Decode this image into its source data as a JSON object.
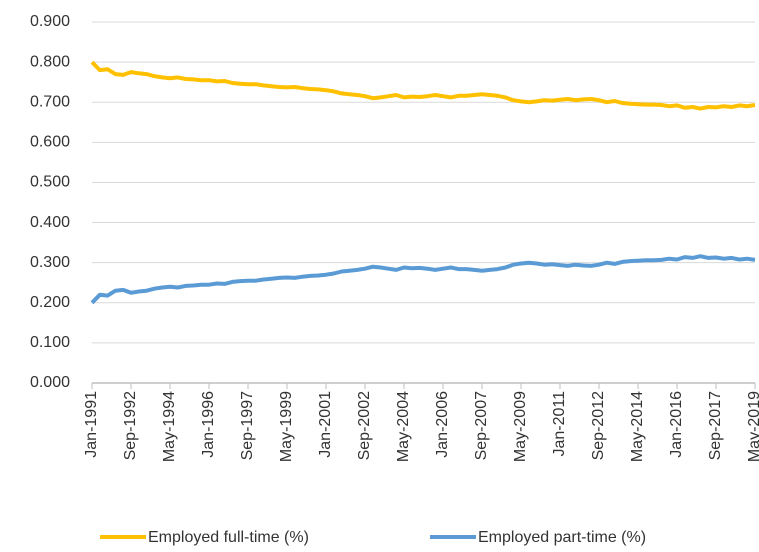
{
  "chart_data": {
    "type": "line",
    "categories": [
      "Jan-1991",
      null,
      null,
      null,
      null,
      "Sep-1992",
      null,
      null,
      null,
      null,
      "May-1994",
      null,
      null,
      null,
      null,
      "Jan-1996",
      null,
      null,
      null,
      null,
      "Sep-1997",
      null,
      null,
      null,
      null,
      "May-1999",
      null,
      null,
      null,
      null,
      "Jan-2001",
      null,
      null,
      null,
      null,
      "Sep-2002",
      null,
      null,
      null,
      null,
      "May-2004",
      null,
      null,
      null,
      null,
      "Jan-2006",
      null,
      null,
      null,
      null,
      "Sep-2007",
      null,
      null,
      null,
      null,
      "May-2009",
      null,
      null,
      null,
      null,
      "Jan-2011",
      null,
      null,
      null,
      null,
      "Sep-2012",
      null,
      null,
      null,
      null,
      "May-2014",
      null,
      null,
      null,
      null,
      "Jan-2016",
      null,
      null,
      null,
      null,
      "Sep-2017",
      null,
      null,
      null,
      null,
      "May-2019"
    ],
    "series": [
      {
        "name": "Employed full-time (%)",
        "color": "#ffc000",
        "values": [
          0.8,
          0.78,
          0.782,
          0.77,
          0.768,
          0.775,
          0.772,
          0.77,
          0.765,
          0.762,
          0.76,
          0.762,
          0.758,
          0.757,
          0.755,
          0.755,
          0.752,
          0.753,
          0.748,
          0.746,
          0.745,
          0.745,
          0.742,
          0.74,
          0.738,
          0.737,
          0.738,
          0.735,
          0.733,
          0.732,
          0.73,
          0.727,
          0.722,
          0.72,
          0.718,
          0.715,
          0.71,
          0.712,
          0.715,
          0.718,
          0.712,
          0.714,
          0.713,
          0.715,
          0.718,
          0.715,
          0.712,
          0.716,
          0.716,
          0.718,
          0.72,
          0.718,
          0.716,
          0.712,
          0.705,
          0.702,
          0.7,
          0.702,
          0.705,
          0.704,
          0.706,
          0.708,
          0.705,
          0.707,
          0.708,
          0.705,
          0.7,
          0.703,
          0.698,
          0.696,
          0.695,
          0.694,
          0.694,
          0.693,
          0.69,
          0.692,
          0.686,
          0.688,
          0.684,
          0.688,
          0.687,
          0.69,
          0.688,
          0.692,
          0.69,
          0.693
        ]
      },
      {
        "name": "Employed part-time (%)",
        "color": "#5b9bd5",
        "values": [
          0.2,
          0.22,
          0.218,
          0.23,
          0.232,
          0.225,
          0.228,
          0.23,
          0.235,
          0.238,
          0.24,
          0.238,
          0.242,
          0.243,
          0.245,
          0.245,
          0.248,
          0.247,
          0.252,
          0.254,
          0.255,
          0.255,
          0.258,
          0.26,
          0.262,
          0.263,
          0.262,
          0.265,
          0.267,
          0.268,
          0.27,
          0.273,
          0.278,
          0.28,
          0.282,
          0.285,
          0.29,
          0.288,
          0.285,
          0.282,
          0.288,
          0.286,
          0.287,
          0.285,
          0.282,
          0.285,
          0.288,
          0.284,
          0.284,
          0.282,
          0.28,
          0.282,
          0.284,
          0.288,
          0.295,
          0.298,
          0.3,
          0.298,
          0.295,
          0.296,
          0.294,
          0.292,
          0.295,
          0.293,
          0.292,
          0.295,
          0.3,
          0.297,
          0.302,
          0.304,
          0.305,
          0.306,
          0.306,
          0.307,
          0.31,
          0.308,
          0.314,
          0.312,
          0.316,
          0.312,
          0.313,
          0.31,
          0.312,
          0.308,
          0.31,
          0.307
        ]
      }
    ],
    "ylim": [
      0,
      0.9
    ],
    "yticks": [
      {
        "value": 0,
        "label": "0.000"
      },
      {
        "value": 0.1,
        "label": "0.100"
      },
      {
        "value": 0.2,
        "label": "0.200"
      },
      {
        "value": 0.3,
        "label": "0.300"
      },
      {
        "value": 0.4,
        "label": "0.400"
      },
      {
        "value": 0.5,
        "label": "0.500"
      },
      {
        "value": 0.6,
        "label": "0.600"
      },
      {
        "value": 0.7,
        "label": "0.700"
      },
      {
        "value": 0.8,
        "label": "0.800"
      },
      {
        "value": 0.9,
        "label": "0.900"
      }
    ],
    "grid": true,
    "legend": "bottom"
  }
}
